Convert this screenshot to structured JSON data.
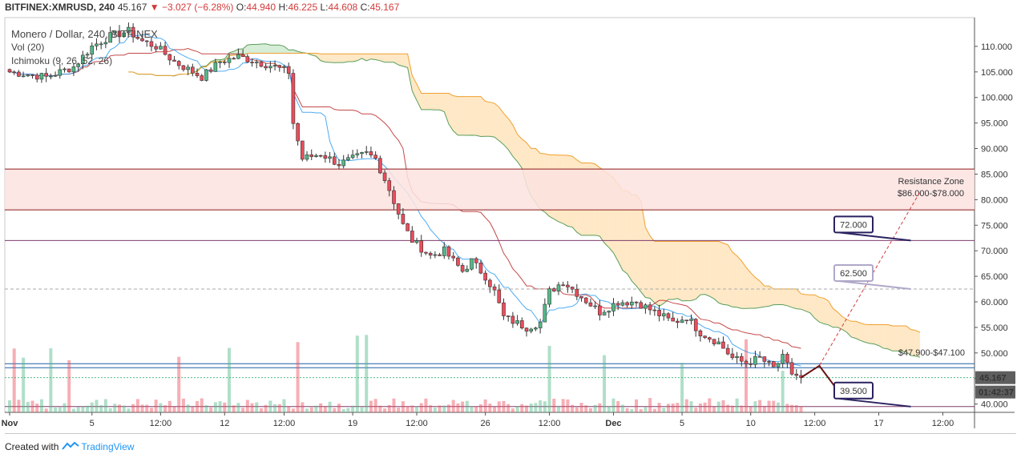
{
  "header": {
    "symbol": "BITFINEX:XMRUSD, 240",
    "last": "45.167",
    "change": "−3.027 (−6.28%)",
    "o_label": "O:",
    "o_val": "44.940",
    "h_label": "H:",
    "h_val": "46.225",
    "l_label": "L:",
    "l_val": "44.608",
    "c_label": "C:",
    "c_val": "45.167"
  },
  "legend": {
    "title": "Monero / Dollar, 240, BITFINEX",
    "vol": "Vol (20)",
    "ichimoku": "Ichimoku (9, 26, 52, 26)"
  },
  "footer": {
    "created_with": "Created with",
    "brand": "TradingView"
  },
  "colors": {
    "bull": "#53b987",
    "bear": "#eb4d5c",
    "tenkan": "#2196f3",
    "kijun": "#b71c1c",
    "cloud_bull": "#a5d6a7",
    "cloud_bear": "#ffcc80",
    "resistance_fill": "#fbe3e1",
    "resistance_line": "#8b1a1a",
    "support_line": "#1f5fa8",
    "level_line": "#7e3b6b"
  },
  "chart_data": {
    "type": "candlestick",
    "ylim": [
      39,
      115
    ],
    "y_ticks": [
      "110.000",
      "105.000",
      "100.000",
      "95.000",
      "90.000",
      "85.000",
      "80.000",
      "75.000",
      "70.000",
      "65.000",
      "60.000",
      "55.000",
      "50.000",
      "45.000",
      "40.000"
    ],
    "y_tick_values": [
      110,
      105,
      100,
      95,
      90,
      85,
      80,
      75,
      70,
      65,
      60,
      55,
      50,
      45,
      40
    ],
    "x_ticks": [
      "Nov",
      "5",
      "12:00",
      "12",
      "12:00",
      "19",
      "12:00",
      "26",
      "12:00",
      "Dec",
      "5",
      "10",
      "12:00",
      "17",
      "12:00"
    ],
    "x_tick_index": [
      0,
      18,
      33,
      47,
      60,
      75,
      89,
      104,
      118,
      132,
      147,
      162,
      176,
      190,
      204
    ],
    "price_label": "45.167",
    "countdown_label": "01:42:37",
    "ohlc_anchors": [
      [
        0,
        105
      ],
      [
        8,
        104
      ],
      [
        14,
        106
      ],
      [
        18,
        110
      ],
      [
        22,
        112
      ],
      [
        26,
        113
      ],
      [
        29,
        111
      ],
      [
        32,
        110
      ],
      [
        36,
        107
      ],
      [
        42,
        104
      ],
      [
        46,
        107
      ],
      [
        50,
        108
      ],
      [
        54,
        107
      ],
      [
        58,
        106
      ],
      [
        61,
        105
      ],
      [
        62,
        95
      ],
      [
        64,
        88
      ],
      [
        68,
        89
      ],
      [
        72,
        87
      ],
      [
        78,
        89
      ],
      [
        80,
        88
      ],
      [
        83,
        82
      ],
      [
        86,
        75
      ],
      [
        88,
        72
      ],
      [
        92,
        69
      ],
      [
        95,
        70
      ],
      [
        99,
        66
      ],
      [
        101,
        68
      ],
      [
        104,
        65
      ],
      [
        106,
        62
      ],
      [
        108,
        57
      ],
      [
        113,
        55
      ],
      [
        116,
        56
      ],
      [
        118,
        62
      ],
      [
        121,
        64
      ],
      [
        125,
        61
      ],
      [
        129,
        58
      ],
      [
        133,
        60
      ],
      [
        137,
        60
      ],
      [
        141,
        58
      ],
      [
        145,
        56
      ],
      [
        148,
        57
      ],
      [
        151,
        54
      ],
      [
        155,
        52
      ],
      [
        158,
        49
      ],
      [
        161,
        48
      ],
      [
        164,
        49
      ],
      [
        167,
        47
      ],
      [
        169,
        49
      ],
      [
        171,
        46
      ],
      [
        173,
        45.2
      ]
    ],
    "annotations": {
      "resistance_zone": {
        "label_line1": "Resistance Zone",
        "label_line2": "$86.000-$78.000",
        "top": 86,
        "bottom": 78
      },
      "support_zone": {
        "label": "$47.900-$47.100",
        "top": 47.9,
        "bottom": 47.1
      },
      "level_72": {
        "label": "72.000",
        "value": 72
      },
      "level_62": {
        "label": "62.500",
        "value": 62.5
      },
      "level_39": {
        "label": "39.500",
        "value": 39.5
      }
    }
  }
}
